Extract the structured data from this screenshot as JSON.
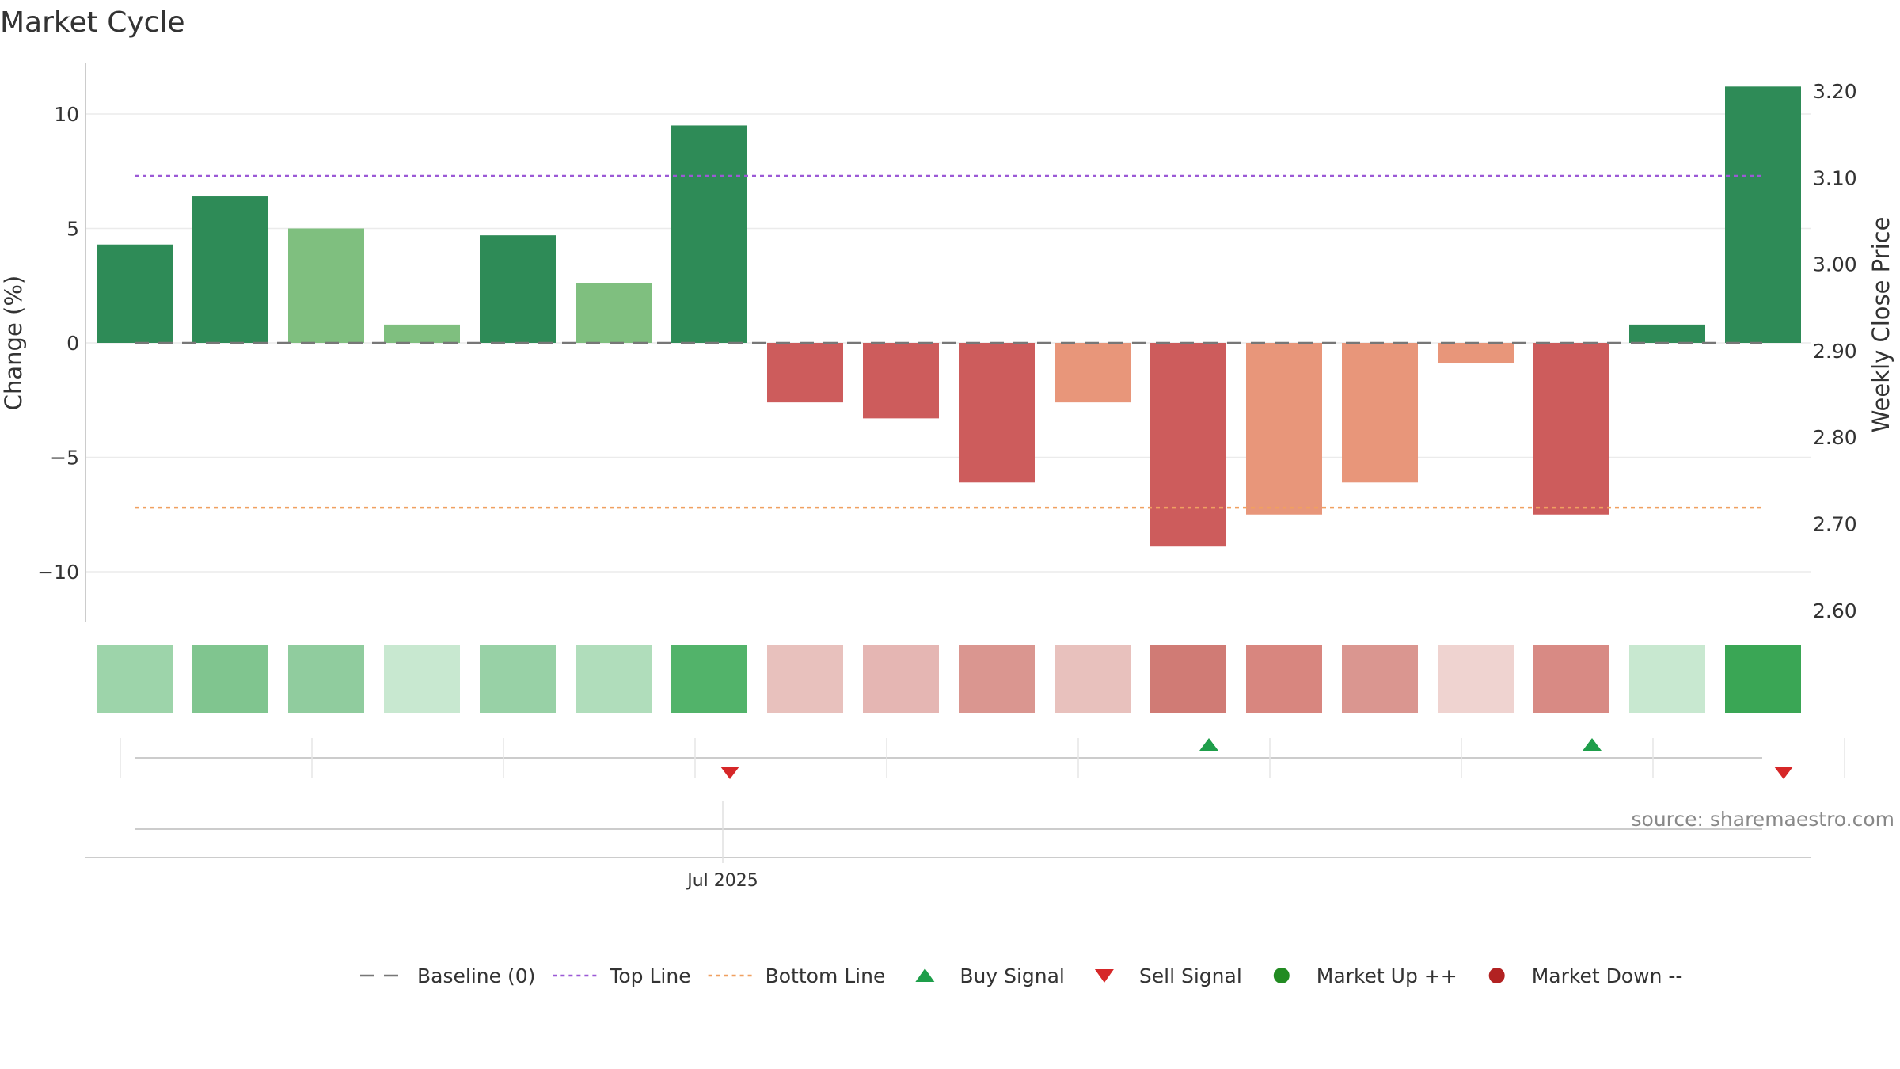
{
  "chart_data": {
    "type": "bar",
    "title": "Market Cycle",
    "ylabel": "Change (%)",
    "y2label": "Weekly Close Price",
    "ylim": [
      -12.2,
      12.2
    ],
    "y2lim": [
      2.585,
      3.23
    ],
    "yticks": [
      10,
      5,
      0,
      -5,
      -10
    ],
    "ytick_labels": [
      "10",
      "5",
      "0",
      "−5",
      "−10"
    ],
    "y2ticks": [
      3.2,
      3.1,
      3.0,
      2.9,
      2.8,
      2.7,
      2.6
    ],
    "y2tick_labels": [
      "3.20",
      "3.10",
      "3.00",
      "2.90",
      "2.80",
      "2.70",
      "2.60"
    ],
    "x_label": "Jul 2025",
    "top_line": 7.3,
    "bottom_line": -7.2,
    "grid": true,
    "values": [
      4.3,
      6.4,
      5.0,
      0.8,
      4.7,
      2.6,
      9.5,
      -2.6,
      -3.3,
      -6.1,
      -2.6,
      -8.9,
      -7.5,
      -6.1,
      -0.9,
      -7.5,
      0.8,
      11.2
    ],
    "bar_colors": [
      "#2e8b57",
      "#2e8b57",
      "#7fbf7f",
      "#7fbf7f",
      "#2e8b57",
      "#7fbf7f",
      "#2e8b57",
      "#cd5c5c",
      "#cd5c5c",
      "#cd5c5c",
      "#e8967a",
      "#cd5c5c",
      "#e8967a",
      "#e8967a",
      "#e8967a",
      "#cd5c5c",
      "#2e8b57",
      "#2e8b57"
    ],
    "heat_colors": [
      "#9dd4aa",
      "#80c58f",
      "#90cc9e",
      "#c8e8d0",
      "#98d1a6",
      "#b0ddbb",
      "#52b36a",
      "#e8c1bd",
      "#e5b6b3",
      "#da9690",
      "#e8c1bd",
      "#d07b75",
      "#d8867f",
      "#da9690",
      "#efd3d0",
      "#d88a84",
      "#c8e8d0",
      "#3aa655"
    ],
    "signals": [
      {
        "index": 6,
        "type": "sell"
      },
      {
        "index": 11,
        "type": "buy"
      },
      {
        "index": 15,
        "type": "buy"
      },
      {
        "index": 17,
        "type": "sell"
      }
    ]
  },
  "source_text": "source: sharemaestro.com",
  "legend": [
    {
      "label": "Baseline (0)",
      "icon": "dashed-line",
      "color": "#777777"
    },
    {
      "label": "Top Line",
      "icon": "dotted-line",
      "color": "#9b59d6"
    },
    {
      "label": "Bottom Line",
      "icon": "dotted-line",
      "color": "#f0a060"
    },
    {
      "label": "Buy Signal",
      "icon": "triangle-up",
      "color": "#1e9e4a"
    },
    {
      "label": "Sell Signal",
      "icon": "triangle-down",
      "color": "#d62728"
    },
    {
      "label": "Market Up ++",
      "icon": "circle",
      "color": "#228b22"
    },
    {
      "label": "Market Down --",
      "icon": "circle",
      "color": "#b22222"
    }
  ]
}
